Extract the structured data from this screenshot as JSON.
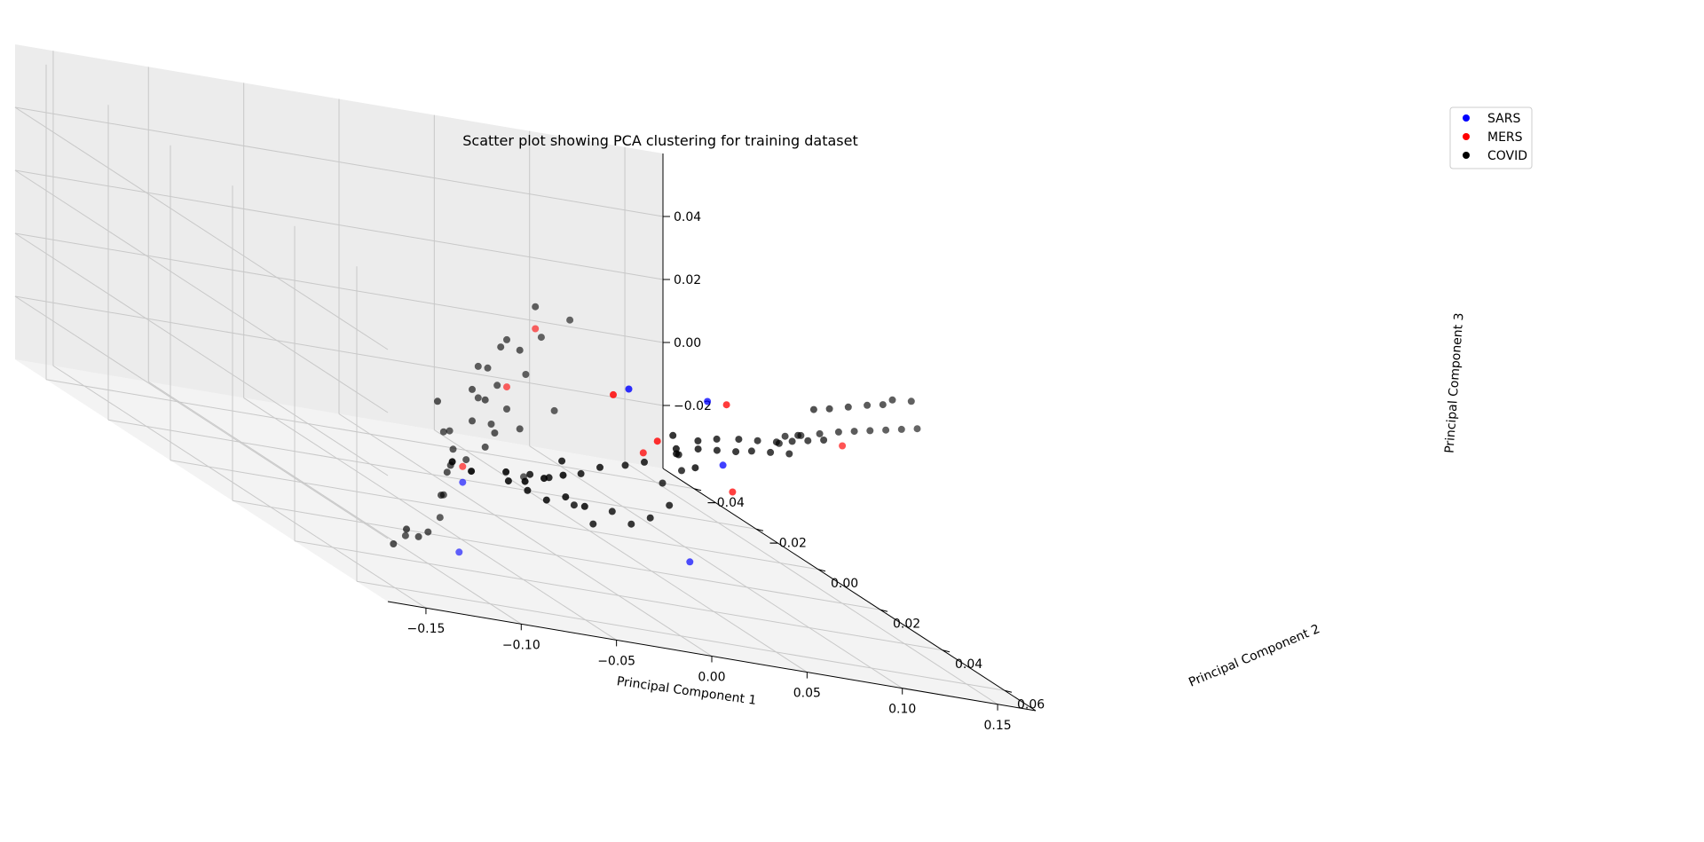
{
  "chart_data": {
    "type": "scatter",
    "title": "Scatter plot showing PCA clustering for training dataset",
    "xlabel": "Principal Component 1",
    "ylabel": "Principal Component 2",
    "zlabel": "Principal Component 3",
    "xlim": [
      -0.17,
      0.17
    ],
    "ylim": [
      -0.05,
      0.07
    ],
    "zlim": [
      -0.04,
      0.06
    ],
    "xticks": [
      "−0.15",
      "−0.10",
      "−0.05",
      "0.00",
      "0.05",
      "0.10",
      "0.15"
    ],
    "yticks": [
      "−0.04",
      "−0.02",
      "0.00",
      "0.02",
      "0.04",
      "0.06"
    ],
    "zticks": [
      "−0.02",
      "0.00",
      "0.02",
      "0.04"
    ],
    "grid": true,
    "legend_position": "top-right",
    "series": [
      {
        "name": "SARS",
        "color": "#0000ff",
        "points": [
          [
            -0.09,
            0.045,
            -0.01
          ],
          [
            -0.1,
            0.05,
            -0.03
          ],
          [
            0.095,
            -0.015,
            0.0
          ],
          [
            0.07,
            0.02,
            -0.035
          ],
          [
            0.12,
            -0.005,
            0.005
          ],
          [
            0.12,
            0.0,
            -0.012
          ]
        ]
      },
      {
        "name": "MERS",
        "color": "#ff0000",
        "points": [
          [
            -0.06,
            0.05,
            0.045
          ],
          [
            -0.075,
            0.05,
            0.025
          ],
          [
            -0.09,
            0.045,
            -0.005
          ],
          [
            0.07,
            0.005,
            -0.01
          ],
          [
            0.095,
            -0.02,
            -0.005
          ],
          [
            0.11,
            -0.015,
            -0.015
          ],
          [
            0.13,
            -0.005,
            0.005
          ],
          [
            0.125,
            0.0,
            -0.02
          ],
          [
            0.15,
            0.02,
            0.01
          ]
        ]
      },
      {
        "name": "COVID",
        "color": "#000000",
        "points": [
          [
            -0.06,
            0.05,
            0.052
          ],
          [
            -0.05,
            0.055,
            0.052
          ],
          [
            -0.065,
            0.05,
            0.03
          ],
          [
            -0.075,
            0.05,
            0.018
          ],
          [
            -0.085,
            0.05,
            0.03
          ],
          [
            -0.09,
            0.05,
            0.02
          ],
          [
            -0.08,
            0.05,
            0.025
          ],
          [
            -0.07,
            0.045,
            0.035
          ],
          [
            -0.06,
            0.045,
            0.035
          ],
          [
            -0.05,
            0.05,
            0.02
          ],
          [
            -0.095,
            0.045,
            0.0
          ],
          [
            -0.085,
            0.045,
            0.01
          ],
          [
            -0.075,
            0.045,
            0.01
          ],
          [
            -0.07,
            0.04,
            0.0
          ],
          [
            -0.08,
            0.04,
            -0.005
          ],
          [
            -0.09,
            0.04,
            -0.01
          ],
          [
            -0.1,
            0.045,
            -0.015
          ],
          [
            -0.11,
            0.05,
            -0.02
          ],
          [
            -0.08,
            0.035,
            -0.01
          ],
          [
            -0.065,
            0.04,
            0.005
          ],
          [
            -0.1,
            0.04,
            -0.03
          ],
          [
            -0.12,
            0.045,
            -0.03
          ],
          [
            -0.105,
            0.04,
            -0.032
          ],
          [
            -0.085,
            0.035,
            -0.02
          ],
          [
            -0.095,
            0.04,
            0.012
          ],
          [
            -0.07,
            0.04,
            0.015
          ],
          [
            -0.06,
            0.045,
            0.01
          ],
          [
            -0.058,
            0.045,
            -0.005
          ],
          [
            -0.085,
            0.045,
            0.02
          ],
          [
            -0.09,
            0.05,
            0.03
          ],
          [
            -0.1,
            0.045,
            0.005
          ],
          [
            -0.105,
            0.05,
            0.008
          ],
          [
            -0.075,
            0.05,
            0.04
          ],
          [
            -0.065,
            0.055,
            0.045
          ],
          [
            -0.095,
            0.03,
            -0.035
          ],
          [
            -0.11,
            0.035,
            -0.038
          ],
          [
            0.035,
            -0.01,
            -0.03
          ],
          [
            0.045,
            -0.01,
            -0.03
          ],
          [
            0.055,
            -0.012,
            -0.025
          ],
          [
            0.065,
            -0.012,
            -0.028
          ],
          [
            0.075,
            -0.012,
            -0.025
          ],
          [
            0.085,
            -0.01,
            -0.022
          ],
          [
            0.095,
            -0.01,
            -0.02
          ],
          [
            0.05,
            -0.005,
            -0.035
          ],
          [
            0.06,
            -0.005,
            -0.04
          ],
          [
            0.07,
            -0.005,
            -0.035
          ],
          [
            0.08,
            -0.005,
            -0.038
          ],
          [
            0.09,
            -0.005,
            -0.035
          ],
          [
            0.1,
            -0.005,
            -0.03
          ],
          [
            0.04,
            -0.02,
            -0.038
          ],
          [
            0.05,
            -0.02,
            -0.04
          ],
          [
            0.06,
            -0.02,
            -0.042
          ],
          [
            0.07,
            -0.02,
            -0.04
          ],
          [
            0.08,
            -0.02,
            -0.042
          ],
          [
            0.055,
            -0.03,
            -0.04
          ],
          [
            0.065,
            -0.03,
            -0.042
          ],
          [
            0.075,
            -0.03,
            -0.04
          ],
          [
            0.085,
            -0.03,
            -0.038
          ],
          [
            0.035,
            -0.035,
            -0.042
          ],
          [
            0.045,
            -0.035,
            -0.044
          ],
          [
            0.085,
            0.002,
            -0.02
          ],
          [
            0.095,
            0.002,
            -0.015
          ],
          [
            0.1,
            -0.002,
            -0.012
          ],
          [
            0.12,
            0.02,
            0.01
          ],
          [
            0.125,
            0.022,
            0.012
          ],
          [
            0.13,
            0.025,
            0.015
          ],
          [
            0.135,
            0.028,
            0.018
          ],
          [
            0.14,
            0.03,
            0.02
          ],
          [
            0.145,
            0.032,
            0.022
          ],
          [
            0.15,
            0.034,
            0.024
          ],
          [
            0.155,
            0.036,
            0.026
          ],
          [
            0.16,
            0.038,
            0.028
          ],
          [
            0.135,
            0.02,
            0.02
          ],
          [
            0.14,
            0.022,
            0.022
          ],
          [
            0.145,
            0.025,
            0.025
          ],
          [
            0.15,
            0.028,
            0.028
          ],
          [
            0.155,
            0.03,
            0.03
          ],
          [
            0.16,
            0.03,
            0.032
          ],
          [
            0.165,
            0.033,
            0.034
          ],
          [
            0.125,
            0.015,
            0.005
          ],
          [
            0.13,
            0.018,
            0.01
          ],
          [
            0.11,
            -0.01,
            -0.01
          ],
          [
            0.115,
            -0.005,
            -0.008
          ],
          [
            0.12,
            -0.002,
            -0.005
          ],
          [
            0.125,
            0.002,
            -0.002
          ],
          [
            0.13,
            0.005,
            0.0
          ],
          [
            0.135,
            0.008,
            0.002
          ],
          [
            0.14,
            0.01,
            0.004
          ],
          [
            0.145,
            0.012,
            0.006
          ],
          [
            0.15,
            0.014,
            0.008
          ],
          [
            0.12,
            -0.008,
            -0.012
          ],
          [
            0.125,
            -0.005,
            -0.01
          ],
          [
            0.13,
            -0.002,
            -0.008
          ],
          [
            0.135,
            0.0,
            -0.006
          ],
          [
            0.14,
            0.003,
            -0.004
          ],
          [
            0.145,
            0.006,
            -0.002
          ],
          [
            0.115,
            -0.012,
            -0.015
          ],
          [
            0.12,
            -0.015,
            -0.018
          ],
          [
            0.125,
            -0.012,
            -0.02
          ]
        ]
      }
    ]
  }
}
